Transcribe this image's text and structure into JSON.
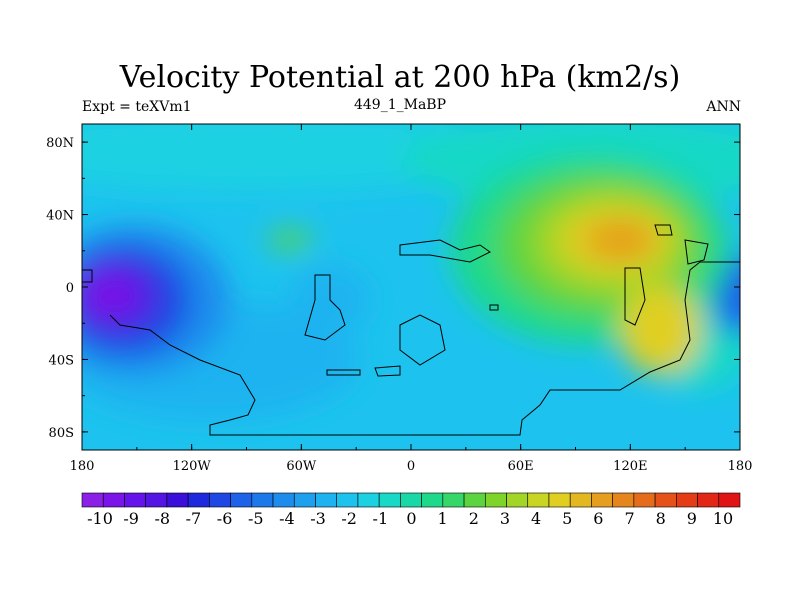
{
  "chart_data": {
    "type": "heatmap",
    "title": "Velocity Potential at 200 hPa (km2/s)",
    "left_label": "Expt = teXVm1",
    "center_label": "449_1_MaBP",
    "right_label": "ANN",
    "x_ticks": [
      "180",
      "120W",
      "60W",
      "0",
      "60E",
      "120E",
      "180"
    ],
    "y_ticks": [
      "80N",
      "40N",
      "0",
      "40S",
      "80S"
    ],
    "xlim": [
      -180,
      180
    ],
    "ylim": [
      -90,
      90
    ],
    "colorbar": {
      "labels": [
        "-10",
        "-9",
        "-8",
        "-7",
        "-6",
        "-5",
        "-4",
        "-3",
        "-2",
        "-1",
        "0",
        "1",
        "2",
        "3",
        "4",
        "5",
        "6",
        "7",
        "8",
        "9",
        "10"
      ],
      "colors": [
        "#8a1fe6",
        "#7a14e8",
        "#6414ea",
        "#5314e4",
        "#3a0fda",
        "#1e28dc",
        "#1e47e3",
        "#1d62e8",
        "#1d78ea",
        "#1e8ced",
        "#1ea0ef",
        "#1eb3f0",
        "#1dc3ee",
        "#1bd1e2",
        "#18d8c6",
        "#18d8a8",
        "#1fd98a",
        "#35d868",
        "#5bd440",
        "#7fd42a",
        "#a3d526",
        "#c8d523",
        "#e0cf20",
        "#e3b71f",
        "#e59e1d",
        "#e5851c",
        "#e56c1a",
        "#e45219",
        "#e33c17",
        "#e22716",
        "#e01414"
      ]
    },
    "features": [
      {
        "name": "min-central-pacific",
        "lon": -162,
        "lat": 2,
        "value": -9.6
      },
      {
        "name": "positive-maximum-south-asia",
        "lon": 115,
        "lat": 22,
        "value": 5.6
      }
    ]
  }
}
